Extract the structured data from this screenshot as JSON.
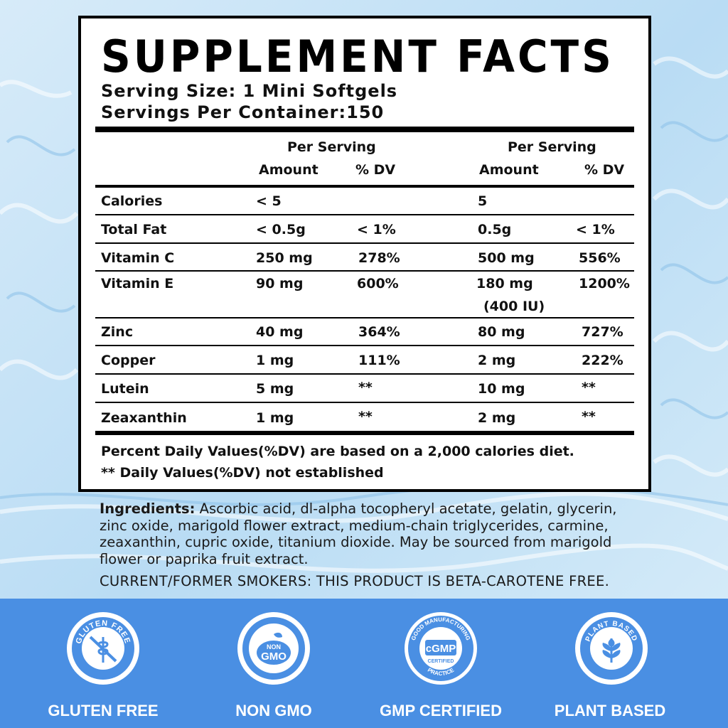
{
  "title": "SUPPLEMENT FACTS",
  "serving_size": "Serving Size: 1 Mini Softgels",
  "servings_per_container": "Servings Per Container:150",
  "columns": {
    "per_serving_1": "Per Serving",
    "amount_1": "Amount",
    "dv_1": "% DV",
    "per_serving_2": "Per Serving",
    "amount_2": "Amount",
    "dv_2": "% DV"
  },
  "rows": [
    {
      "name": "Calories",
      "amt1": "< 5",
      "dv1": "",
      "amt2": "5",
      "amt2b": "",
      "dv2": ""
    },
    {
      "name": "Total Fat",
      "amt1": "< 0.5g",
      "dv1": "< 1%",
      "amt2": "0.5g",
      "amt2b": "",
      "dv2": "< 1%"
    },
    {
      "name": "Vitamin C",
      "amt1": "250 mg",
      "dv1": "278%",
      "amt2": "500 mg",
      "amt2b": "",
      "dv2": "556%"
    },
    {
      "name": "Vitamin E",
      "amt1": "90 mg",
      "dv1": "600%",
      "amt2": "180 mg",
      "amt2b": "(400 IU)",
      "dv2": "1200%"
    },
    {
      "name": "Zinc",
      "amt1": "40 mg",
      "dv1": "364%",
      "amt2": "80 mg",
      "amt2b": "",
      "dv2": "727%"
    },
    {
      "name": "Copper",
      "amt1": "1 mg",
      "dv1": "111%",
      "amt2": "2 mg",
      "amt2b": "",
      "dv2": "222%"
    },
    {
      "name": "Lutein",
      "amt1": "5 mg",
      "dv1": "**",
      "amt2": "10 mg",
      "amt2b": "",
      "dv2": "**"
    },
    {
      "name": "Zeaxanthin",
      "amt1": "1 mg",
      "dv1": "**",
      "amt2": "2 mg",
      "amt2b": "",
      "dv2": "**"
    }
  ],
  "footnote_1": "Percent Daily Values(%DV) are based on a 2,000 calories diet.",
  "footnote_2": "** Daily Values(%DV) not established",
  "ingredients_label": "Ingredients:",
  "ingredients_text": " Ascorbic acid, dl-alpha tocopheryl acetate, gelatin, glycerin, zinc oxide, marigold flower extract, medium-chain triglycerides, carmine, zeaxanthin, cupric oxide, titanium dioxide. May be sourced from marigold flower or paprika fruit extract.",
  "smokers_note": "CURRENT/FORMER SMOKERS: THIS PRODUCT IS  BETA-CAROTENE FREE.",
  "colors": {
    "band": "#4a8fe3",
    "water_light": "#cfe6f7",
    "water_dark": "#8fc3ea"
  },
  "badges": [
    {
      "icon": "gluten-free-icon",
      "ring_text": "GLUTEN FREE",
      "label": "GLUTEN FREE"
    },
    {
      "icon": "non-gmo-icon",
      "ring_text": "NON GMO",
      "label": "NON GMO"
    },
    {
      "icon": "gmp-certified-icon",
      "ring_text": "GOOD MANUFACTURING PRACTICE",
      "label": "GMP CERTIFIED"
    },
    {
      "icon": "plant-based-icon",
      "ring_text": "PLANT BASED",
      "label": "PLANT BASED"
    }
  ]
}
